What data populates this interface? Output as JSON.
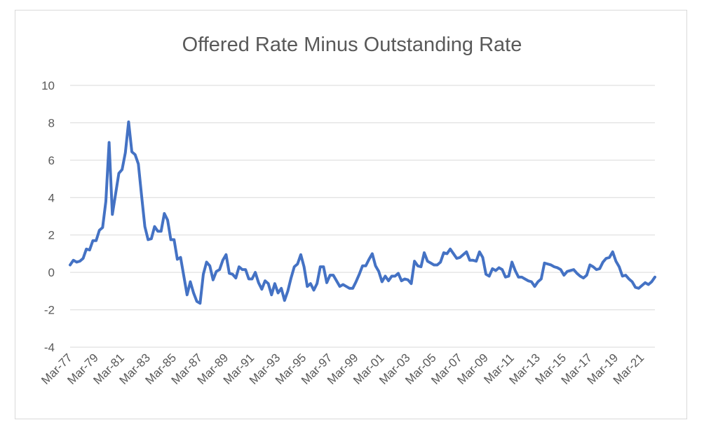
{
  "chart_data": {
    "type": "line",
    "title": "Offered Rate Minus Outstanding Rate",
    "xlabel": "",
    "ylabel": "",
    "ylim": [
      -4,
      10
    ],
    "y_ticks": [
      "10",
      "8",
      "6",
      "4",
      "2",
      "0",
      "-2",
      "-4"
    ],
    "x_tick_labels": [
      "Mar-77",
      "Mar-79",
      "Mar-81",
      "Mar-83",
      "Mar-85",
      "Mar-87",
      "Mar-89",
      "Mar-91",
      "Mar-93",
      "Mar-95",
      "Mar-97",
      "Mar-99",
      "Mar-01",
      "Mar-03",
      "Mar-05",
      "Mar-07",
      "Mar-09",
      "Mar-11",
      "Mar-13",
      "Mar-15",
      "Mar-17",
      "Mar-19",
      "Mar-21"
    ],
    "grid": true,
    "colors": {
      "line": "#4472c4",
      "grid": "#d9d9d9",
      "text": "#595959"
    },
    "series": [
      {
        "frequency": "quarterly",
        "values": [
          0.4,
          0.65,
          0.55,
          0.6,
          0.75,
          1.25,
          1.2,
          1.7,
          1.7,
          2.25,
          2.4,
          3.8,
          6.95,
          3.1,
          4.2,
          5.3,
          5.5,
          6.4,
          8.05,
          6.45,
          6.3,
          5.8,
          4.1,
          2.45,
          1.75,
          1.8,
          2.45,
          2.2,
          2.2,
          3.15,
          2.8,
          1.75,
          1.75,
          0.7,
          0.8,
          -0.2,
          -1.2,
          -0.5,
          -1.1,
          -1.55,
          -1.65,
          -0.1,
          0.55,
          0.35,
          -0.4,
          0.05,
          0.15,
          0.65,
          0.95,
          -0.05,
          -0.1,
          -0.3,
          0.3,
          0.15,
          0.15,
          -0.35,
          -0.35,
          0.0,
          -0.55,
          -0.9,
          -0.45,
          -0.6,
          -1.2,
          -0.6,
          -1.1,
          -0.85,
          -1.5,
          -1.0,
          -0.3,
          0.3,
          0.45,
          0.95,
          0.3,
          -0.75,
          -0.6,
          -0.95,
          -0.6,
          0.3,
          0.3,
          -0.55,
          -0.15,
          -0.15,
          -0.45,
          -0.75,
          -0.65,
          -0.75,
          -0.85,
          -0.85,
          -0.5,
          -0.1,
          0.35,
          0.35,
          0.7,
          1.0,
          0.35,
          0.05,
          -0.5,
          -0.2,
          -0.45,
          -0.2,
          -0.2,
          -0.05,
          -0.45,
          -0.35,
          -0.4,
          -0.6,
          0.6,
          0.35,
          0.3,
          1.05,
          0.6,
          0.5,
          0.4,
          0.4,
          0.55,
          1.05,
          1.0,
          1.25,
          1.0,
          0.75,
          0.8,
          0.95,
          1.1,
          0.65,
          0.65,
          0.6,
          1.1,
          0.8,
          -0.1,
          -0.2,
          0.2,
          0.1,
          0.25,
          0.15,
          -0.25,
          -0.2,
          0.55,
          0.1,
          -0.25,
          -0.25,
          -0.35,
          -0.45,
          -0.5,
          -0.75,
          -0.5,
          -0.35,
          0.5,
          0.45,
          0.4,
          0.3,
          0.25,
          0.15,
          -0.15,
          0.05,
          0.1,
          0.15,
          -0.05,
          -0.2,
          -0.3,
          -0.15,
          0.4,
          0.3,
          0.15,
          0.2,
          0.55,
          0.75,
          0.8,
          1.1,
          0.6,
          0.3,
          -0.2,
          -0.15,
          -0.35,
          -0.5,
          -0.8,
          -0.85,
          -0.7,
          -0.55,
          -0.65,
          -0.5,
          -0.25
        ]
      }
    ]
  }
}
